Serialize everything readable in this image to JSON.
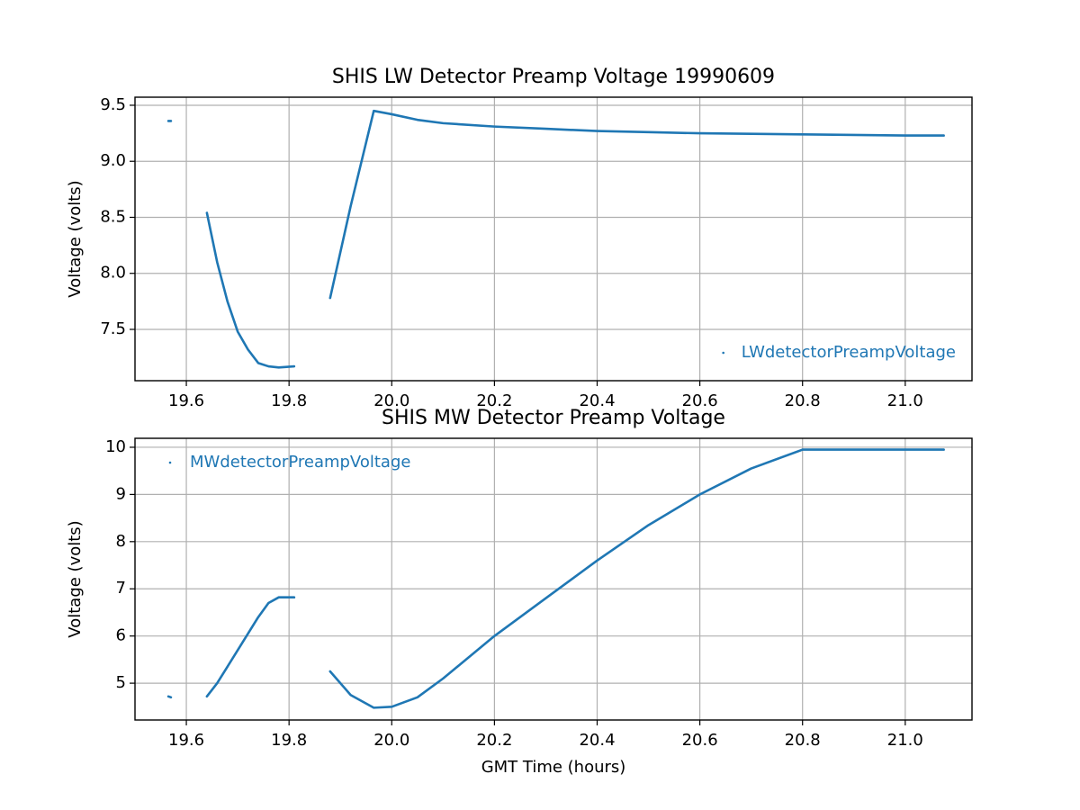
{
  "chart_data": [
    {
      "type": "line",
      "title": "SHIS LW Detector Preamp Voltage 19990609",
      "y_label": "Voltage (volts)",
      "x": [
        19.565,
        19.57,
        null,
        19.64,
        19.66,
        19.68,
        19.7,
        19.72,
        19.74,
        19.76,
        19.78,
        19.81,
        null,
        19.88,
        19.92,
        19.965,
        20.0,
        20.05,
        20.1,
        20.2,
        20.3,
        20.4,
        20.5,
        20.6,
        20.7,
        20.8,
        20.9,
        21.0,
        21.075
      ],
      "series": [
        {
          "name": "LWdetectorPreampVoltage",
          "color": "#1f77b4",
          "values": [
            9.36,
            9.36,
            null,
            8.54,
            8.1,
            7.75,
            7.48,
            7.32,
            7.2,
            7.17,
            7.16,
            7.17,
            null,
            7.78,
            8.6,
            9.45,
            9.42,
            9.37,
            9.34,
            9.31,
            9.29,
            9.27,
            9.26,
            9.25,
            9.245,
            9.24,
            9.235,
            9.23,
            9.23
          ]
        }
      ],
      "xlim": [
        19.5,
        21.13
      ],
      "ylim": [
        7.042,
        9.572
      ],
      "xticks": [
        19.6,
        19.8,
        {
          "value": 20,
          "label": "20.0"
        },
        20.2,
        20.4,
        20.6,
        20.8,
        {
          "value": 21,
          "label": "21.0"
        }
      ],
      "yticks": [
        7.5,
        {
          "value": 8,
          "label": "8.0"
        },
        8.5,
        {
          "value": 9,
          "label": "9.0"
        },
        9.5
      ],
      "grid": true,
      "legend": "lower-right"
    },
    {
      "type": "line",
      "title": "SHIS MW Detector Preamp Voltage",
      "y_label": "Voltage (volts)",
      "x_label": "GMT Time (hours)",
      "x": [
        19.565,
        19.57,
        null,
        19.64,
        19.66,
        19.68,
        19.7,
        19.72,
        19.74,
        19.76,
        19.78,
        19.81,
        null,
        19.88,
        19.92,
        19.965,
        20.0,
        20.05,
        20.1,
        20.2,
        20.3,
        20.4,
        20.5,
        20.6,
        20.7,
        20.8,
        20.9,
        21.0,
        21.075
      ],
      "series": [
        {
          "name": "MWdetectorPreampVoltage",
          "color": "#1f77b4",
          "values": [
            4.72,
            4.7,
            null,
            4.72,
            5.0,
            5.35,
            5.7,
            6.05,
            6.4,
            6.7,
            6.82,
            6.82,
            null,
            5.25,
            4.75,
            4.48,
            4.5,
            4.7,
            5.1,
            6.0,
            6.8,
            7.6,
            8.35,
            9.0,
            9.55,
            9.95,
            9.95,
            9.95,
            9.95
          ]
        }
      ],
      "xlim": [
        19.5,
        21.13
      ],
      "ylim": [
        4.22,
        10.19
      ],
      "xticks": [
        19.6,
        19.8,
        {
          "value": 20,
          "label": "20.0"
        },
        20.2,
        20.4,
        20.6,
        20.8,
        {
          "value": 21,
          "label": "21.0"
        }
      ],
      "yticks": [
        5,
        6,
        7,
        8,
        9,
        10
      ],
      "grid": true,
      "legend": "upper-left"
    }
  ]
}
